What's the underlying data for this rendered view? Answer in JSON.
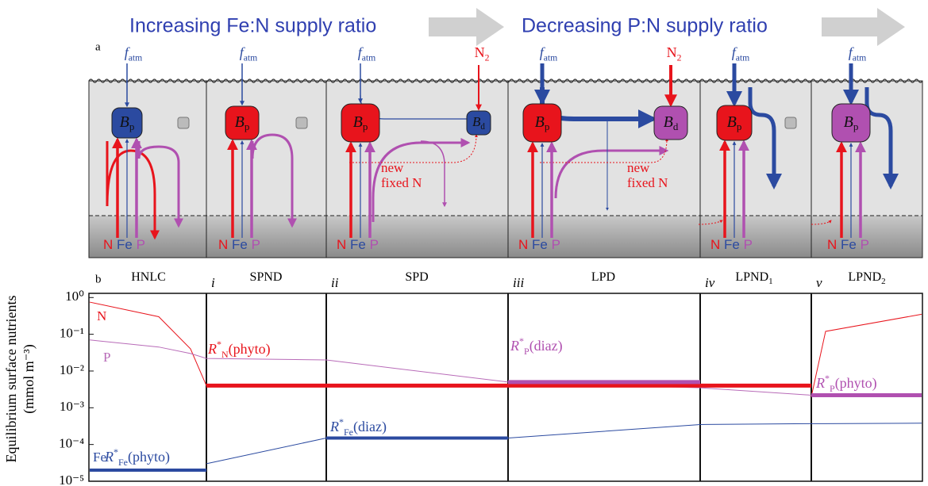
{
  "header": {
    "left": "Increasing Fe:N supply ratio",
    "right": "Decreasing P:N supply ratio"
  },
  "panel_a": {
    "label": "a",
    "columns": [
      {
        "f_atm": {
          "main": "f",
          "sub": "atm"
        },
        "cells": [
          {
            "main": "B",
            "sub": "p"
          }
        ],
        "nutrients": [
          "N",
          "Fe",
          "P"
        ]
      },
      {
        "f_atm": {
          "main": "f",
          "sub": "atm"
        },
        "cells": [
          {
            "main": "B",
            "sub": "p"
          }
        ],
        "nutrients": [
          "N",
          "Fe",
          "P"
        ]
      },
      {
        "f_atm": {
          "main": "f",
          "sub": "atm"
        },
        "n2": {
          "main": "N",
          "sub": "2"
        },
        "cells": [
          {
            "main": "B",
            "sub": "p"
          },
          {
            "main": "B",
            "sub": "d"
          }
        ],
        "fixed": [
          "new",
          "fixed N"
        ],
        "nutrients": [
          "N",
          "Fe",
          "P"
        ]
      },
      {
        "f_atm": {
          "main": "f",
          "sub": "atm"
        },
        "n2": {
          "main": "N",
          "sub": "2"
        },
        "cells": [
          {
            "main": "B",
            "sub": "p"
          },
          {
            "main": "B",
            "sub": "d"
          }
        ],
        "fixed": [
          "new",
          "fixed N"
        ],
        "nutrients": [
          "N",
          "Fe",
          "P"
        ]
      },
      {
        "f_atm": {
          "main": "f",
          "sub": "atm"
        },
        "cells": [
          {
            "main": "B",
            "sub": "p"
          }
        ],
        "nutrients": [
          "N",
          "Fe",
          "P"
        ]
      },
      {
        "f_atm": {
          "main": "f",
          "sub": "atm"
        },
        "cells": [
          {
            "main": "B",
            "sub": "p"
          }
        ],
        "nutrients": [
          "N",
          "Fe",
          "P"
        ]
      }
    ]
  },
  "panel_b": {
    "label": "b",
    "regimes": [
      {
        "text": "HNLC"
      },
      {
        "text": "SPND"
      },
      {
        "text": "SPD"
      },
      {
        "text": "LPD"
      },
      {
        "text": "LPND",
        "sub": "1"
      },
      {
        "text": "LPND",
        "sub": "2"
      }
    ]
  },
  "chart_data": {
    "type": "line",
    "log_y": true,
    "ylabel": [
      "Equilibrium surface nutrients",
      "(mmol m⁻³)"
    ],
    "categories": [
      null,
      null,
      null,
      "i",
      "ii",
      "iii",
      "iv",
      "v",
      null,
      null
    ],
    "ylim": [
      1e-05,
      1.3
    ],
    "yticks": [
      {
        "value": 1,
        "label": "10⁰"
      },
      {
        "value": 0.1,
        "label": "10⁻¹"
      },
      {
        "value": 0.01,
        "label": "10⁻²"
      },
      {
        "value": 0.001,
        "label": "10⁻³"
      },
      {
        "value": 0.0001,
        "label": "10⁻⁴"
      },
      {
        "value": 1e-05,
        "label": "10⁻⁵"
      }
    ],
    "series": [
      {
        "name": "N",
        "color": "#e8141c",
        "width": 1,
        "values": [
          0.75,
          0.3,
          0.04,
          0.004,
          null,
          null,
          null,
          0.002,
          0.12,
          0.35
        ]
      },
      {
        "name": "P",
        "color": "#b86bb8",
        "width": 1,
        "values": [
          0.07,
          0.045,
          0.03,
          0.022,
          0.02,
          0.005,
          0.0035,
          0.0022,
          null,
          null
        ]
      },
      {
        "name": "Fe",
        "color": "#2b4aa0",
        "width": 1,
        "values": [
          null,
          null,
          null,
          3e-05,
          0.00015,
          0.00015,
          0.00035,
          0.00037,
          0.00037,
          0.00038
        ]
      },
      {
        "label": [
          "R",
          "*",
          "N",
          "(phyto)"
        ],
        "color": "#e8141c",
        "width": 5,
        "values": [
          null,
          null,
          null,
          0.004,
          0.004,
          0.004,
          0.004,
          0.004,
          null,
          null
        ]
      },
      {
        "label": [
          "R",
          "*",
          "Fe",
          "(phyto)"
        ],
        "color": "#2b4aa0",
        "width": 4,
        "values": [
          2e-05,
          2e-05,
          2e-05,
          2e-05,
          null,
          null,
          null,
          null,
          null,
          null
        ]
      },
      {
        "label": [
          "R",
          "*",
          "Fe",
          "(diaz)"
        ],
        "color": "#2b4aa0",
        "width": 4,
        "values": [
          null,
          null,
          null,
          null,
          0.00015,
          0.00015,
          null,
          null,
          null,
          null
        ]
      },
      {
        "label": [
          "R",
          "*",
          "P",
          "(diaz)"
        ],
        "color": "#b050b0",
        "width": 5,
        "values": [
          null,
          null,
          null,
          null,
          null,
          0.005,
          0.005,
          null,
          null,
          null
        ]
      },
      {
        "label": [
          "R",
          "*",
          "P",
          "(phyto)"
        ],
        "color": "#b050b0",
        "width": 5,
        "values": [
          null,
          null,
          null,
          null,
          null,
          null,
          null,
          0.0022,
          0.0022,
          0.0022
        ]
      }
    ]
  }
}
